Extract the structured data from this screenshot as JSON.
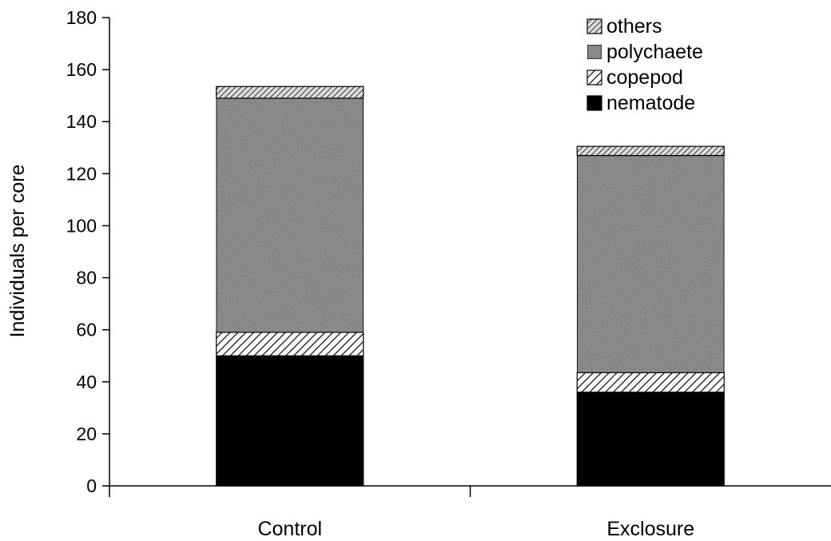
{
  "chart_data": {
    "type": "bar",
    "stacked": true,
    "categories": [
      "Control",
      "Exclosure"
    ],
    "series": [
      {
        "name": "nematode",
        "values": [
          50,
          36
        ],
        "color": "#000000",
        "fill": "solid"
      },
      {
        "name": "copepod",
        "values": [
          9,
          7.5
        ],
        "color": "#555555",
        "fill": "diagonal-hatch"
      },
      {
        "name": "polychaete",
        "values": [
          90,
          83.5
        ],
        "color": "#9a9a9a",
        "fill": "speckled-gray"
      },
      {
        "name": "others",
        "values": [
          4.5,
          3.5
        ],
        "color": "#666666",
        "fill": "fine-diagonal-hatch"
      }
    ],
    "ylabel": "Individuals per core",
    "xlabel": "",
    "ylim": [
      0,
      180
    ],
    "yticks": [
      "0",
      "20",
      "40",
      "60",
      "80",
      "100",
      "120",
      "140",
      "160",
      "180"
    ],
    "grid": false,
    "legend_position": "top-right",
    "legend_order": [
      "others",
      "polychaete",
      "copepod",
      "nematode"
    ]
  }
}
